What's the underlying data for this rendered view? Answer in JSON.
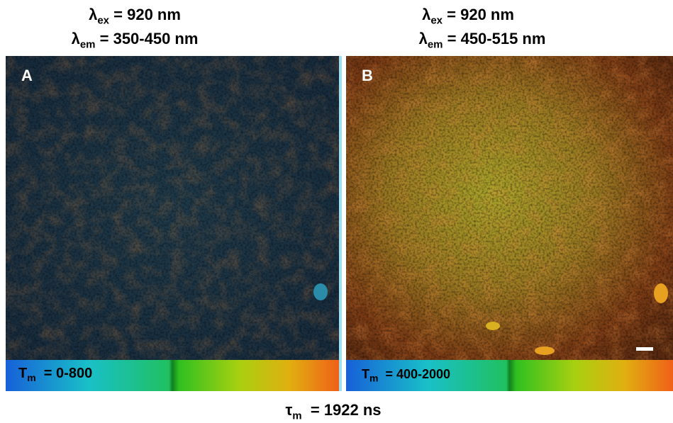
{
  "panels": [
    {
      "excitation": {
        "symbol": "λ",
        "subscript": "ex",
        "text": "= 920 nm"
      },
      "emission": {
        "symbol": "λ",
        "subscript": "em",
        "text": "= 350-450 nm"
      },
      "label": "A",
      "colorbar": {
        "symbol": "T",
        "subscript": "m",
        "text": "= 0-800"
      }
    },
    {
      "excitation": {
        "symbol": "λ",
        "subscript": "ex",
        "text": "= 920 nm"
      },
      "emission": {
        "symbol": "λ",
        "subscript": "em",
        "text": "= 450-515 nm"
      },
      "label": "B",
      "colorbar": {
        "symbol": "T",
        "subscript": "m",
        "text": "= 400-2000"
      }
    }
  ],
  "footer": {
    "symbol": "τ",
    "subscript": "m",
    "text": "= 1922 ns"
  }
}
